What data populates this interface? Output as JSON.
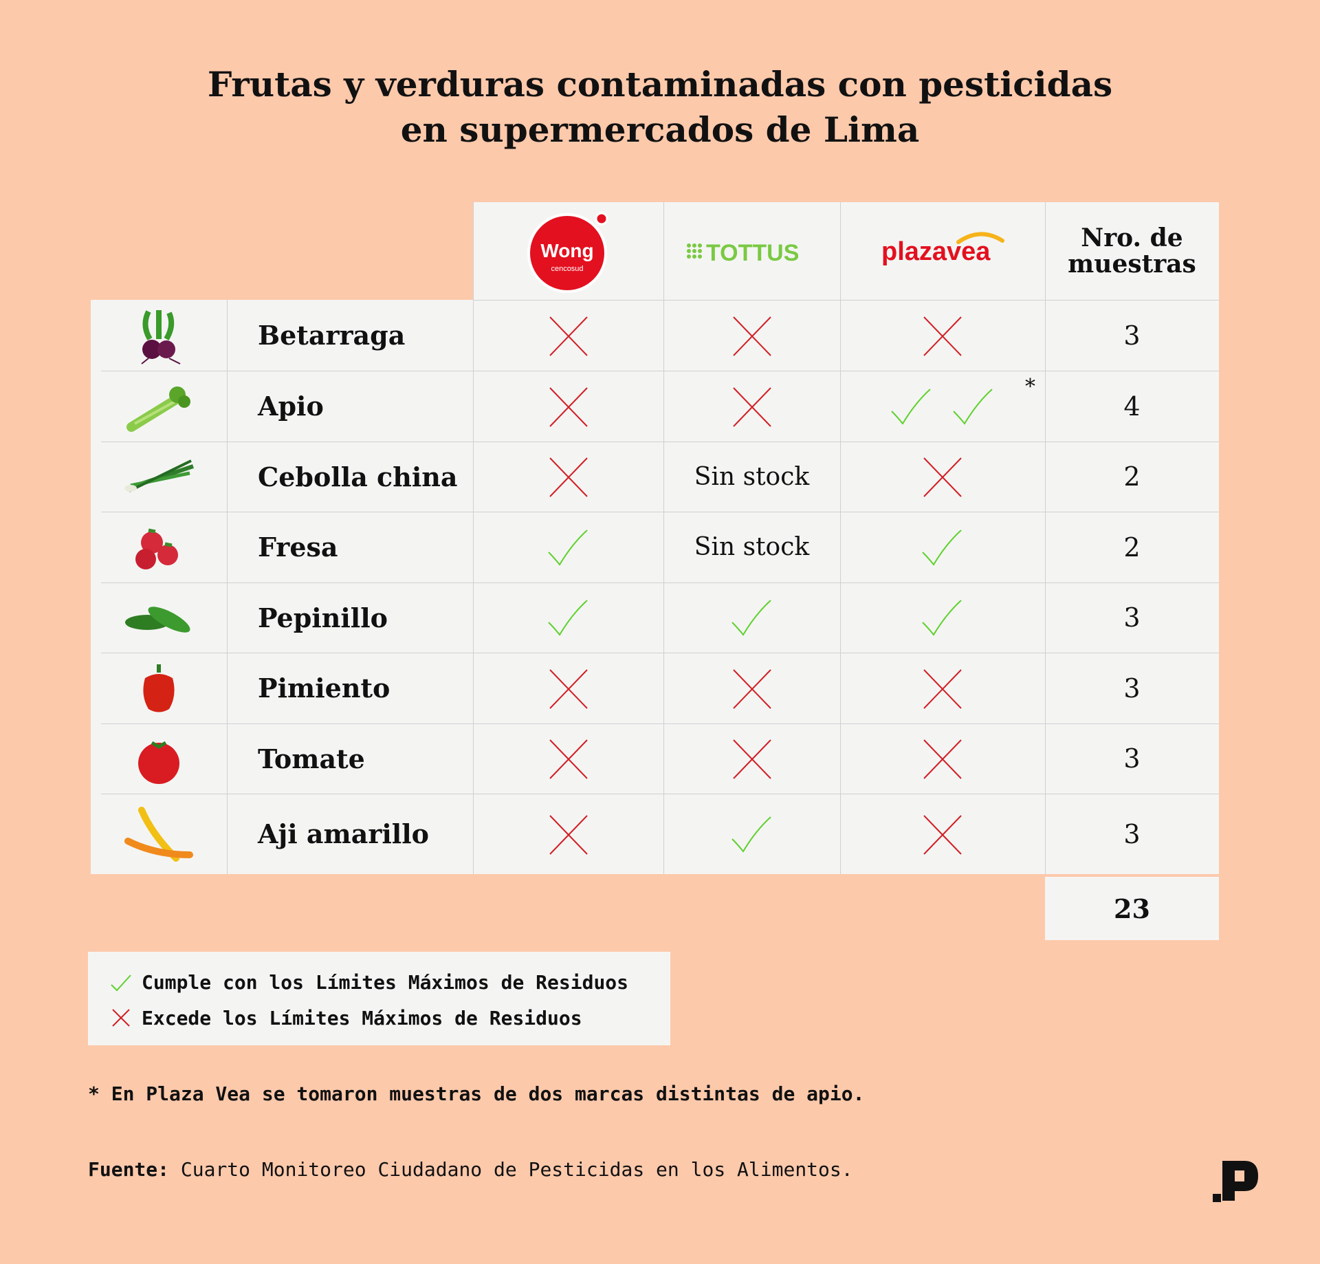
{
  "title": {
    "line1": "Frutas y verduras contaminadas con pesticidas",
    "line2": "en supermercados de Lima"
  },
  "columns": {
    "wong": {
      "brand": "Wong",
      "sub": "cencosud",
      "color": "#e3101f"
    },
    "tottus": {
      "brand": "TOTTUS",
      "color": "#7ac943"
    },
    "plazavea": {
      "brand": "plazavea",
      "color": "#e3101f",
      "accent": "#f6b31b"
    },
    "muestras_line1": "Nro. de",
    "muestras_line2": "muestras"
  },
  "rows": [
    {
      "name": "Betarraga",
      "icon": "beet-icon",
      "wong": "x",
      "tottus": "x",
      "plazavea": "x",
      "samples": "3"
    },
    {
      "name": "Apio",
      "icon": "celery-icon",
      "wong": "x",
      "tottus": "x",
      "plazavea": "check-check",
      "plazavea_note": "*",
      "samples": "4"
    },
    {
      "name": "Cebolla china",
      "icon": "green-onion-icon",
      "wong": "x",
      "tottus": "Sin stock",
      "plazavea": "x",
      "samples": "2"
    },
    {
      "name": "Fresa",
      "icon": "strawberry-icon",
      "wong": "check",
      "tottus": "Sin stock",
      "plazavea": "check",
      "samples": "2"
    },
    {
      "name": "Pepinillo",
      "icon": "cucumber-icon",
      "wong": "check",
      "tottus": "check",
      "plazavea": "check",
      "samples": "3"
    },
    {
      "name": "Pimiento",
      "icon": "bell-pepper-icon",
      "wong": "x",
      "tottus": "x",
      "plazavea": "x",
      "samples": "3"
    },
    {
      "name": "Tomate",
      "icon": "tomato-icon",
      "wong": "x",
      "tottus": "x",
      "plazavea": "x",
      "samples": "3"
    },
    {
      "name": "Aji amarillo",
      "icon": "yellow-chili-icon",
      "wong": "x",
      "tottus": "check",
      "plazavea": "x",
      "samples": "3"
    }
  ],
  "total": "23",
  "legend": {
    "check_label": "Cumple con los Límites Máximos de Residuos",
    "x_label": "Excede los Límites Máximos de Residuos"
  },
  "note": "* En Plaza Vea se tomaron muestras de dos marcas distintas de apio.",
  "source": {
    "label": "Fuente:",
    "text": " Cuarto Monitoreo Ciudadano de Pesticidas en los Alimentos."
  },
  "colors": {
    "background": "#fdc9ab",
    "panel": "#f4f5f3",
    "check": "#5fd12e",
    "x": "#d21f26"
  },
  "logo": {
    "icon": "publication-logo-icon"
  }
}
